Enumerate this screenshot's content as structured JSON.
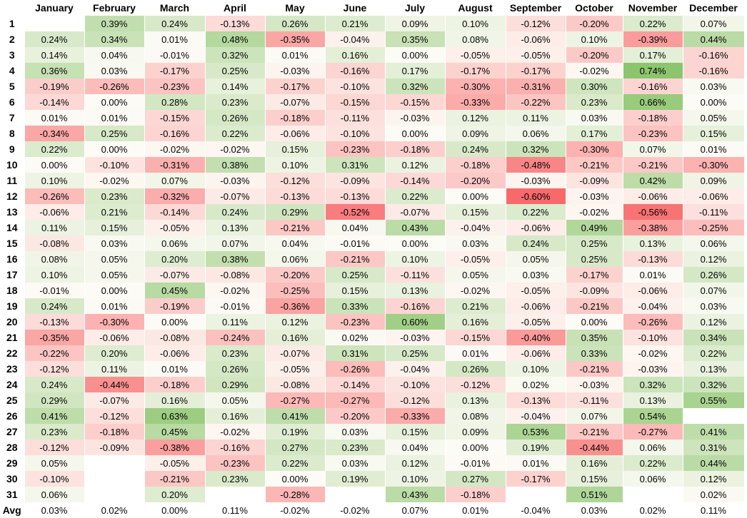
{
  "months": [
    "January",
    "February",
    "March",
    "April",
    "May",
    "June",
    "July",
    "August",
    "September",
    "October",
    "November",
    "December"
  ],
  "avg_label": "Avg",
  "rows": [
    {
      "day": "1",
      "values": [
        "",
        "0.39%",
        "0.24%",
        "-0.13%",
        "0.26%",
        "0.21%",
        "0.09%",
        "0.10%",
        "-0.12%",
        "-0.20%",
        "0.22%",
        "0.07%"
      ]
    },
    {
      "day": "2",
      "values": [
        "0.24%",
        "0.34%",
        "0.01%",
        "0.48%",
        "-0.35%",
        "-0.04%",
        "0.35%",
        "0.08%",
        "-0.06%",
        "0.10%",
        "-0.39%",
        "0.44%"
      ]
    },
    {
      "day": "3",
      "values": [
        "0.14%",
        "0.04%",
        "-0.01%",
        "0.32%",
        "0.01%",
        "0.16%",
        "0.00%",
        "-0.05%",
        "-0.05%",
        "-0.20%",
        "0.17%",
        "-0.16%"
      ]
    },
    {
      "day": "4",
      "values": [
        "0.36%",
        "0.03%",
        "-0.17%",
        "0.25%",
        "-0.03%",
        "-0.16%",
        "0.17%",
        "-0.17%",
        "-0.17%",
        "-0.02%",
        "0.74%",
        "-0.16%"
      ]
    },
    {
      "day": "5",
      "values": [
        "-0.19%",
        "-0.26%",
        "-0.23%",
        "0.14%",
        "-0.17%",
        "-0.10%",
        "0.32%",
        "-0.30%",
        "-0.31%",
        "0.30%",
        "-0.16%",
        "0.03%"
      ]
    },
    {
      "day": "6",
      "values": [
        "-0.14%",
        "0.00%",
        "0.28%",
        "0.23%",
        "-0.07%",
        "-0.15%",
        "-0.15%",
        "-0.33%",
        "-0.22%",
        "0.23%",
        "0.66%",
        "0.00%"
      ]
    },
    {
      "day": "7",
      "values": [
        "0.01%",
        "0.01%",
        "-0.15%",
        "0.26%",
        "-0.18%",
        "-0.11%",
        "-0.03%",
        "0.12%",
        "0.11%",
        "0.03%",
        "-0.18%",
        "0.05%"
      ]
    },
    {
      "day": "8",
      "values": [
        "-0.34%",
        "0.25%",
        "-0.16%",
        "0.22%",
        "-0.06%",
        "-0.10%",
        "0.00%",
        "0.09%",
        "0.06%",
        "0.17%",
        "-0.23%",
        "0.15%"
      ]
    },
    {
      "day": "9",
      "values": [
        "0.22%",
        "0.00%",
        "-0.02%",
        "-0.02%",
        "0.15%",
        "-0.23%",
        "-0.18%",
        "0.24%",
        "0.32%",
        "-0.30%",
        "0.07%",
        "0.01%"
      ]
    },
    {
      "day": "10",
      "values": [
        "0.00%",
        "-0.10%",
        "-0.31%",
        "0.38%",
        "0.10%",
        "0.31%",
        "0.12%",
        "-0.18%",
        "-0.48%",
        "-0.21%",
        "-0.21%",
        "-0.30%"
      ]
    },
    {
      "day": "11",
      "values": [
        "0.10%",
        "-0.02%",
        "0.07%",
        "-0.03%",
        "-0.12%",
        "-0.09%",
        "-0.14%",
        "-0.20%",
        "-0.03%",
        "-0.09%",
        "0.42%",
        "0.09%"
      ]
    },
    {
      "day": "12",
      "values": [
        "-0.26%",
        "0.23%",
        "-0.32%",
        "-0.07%",
        "-0.13%",
        "-0.13%",
        "0.22%",
        "0.00%",
        "-0.60%",
        "-0.03%",
        "-0.06%",
        "-0.06%"
      ]
    },
    {
      "day": "13",
      "values": [
        "-0.06%",
        "0.21%",
        "-0.14%",
        "0.24%",
        "0.29%",
        "-0.52%",
        "-0.07%",
        "0.15%",
        "0.22%",
        "-0.02%",
        "-0.56%",
        "-0.11%"
      ]
    },
    {
      "day": "14",
      "values": [
        "0.11%",
        "0.15%",
        "-0.05%",
        "0.13%",
        "-0.21%",
        "0.04%",
        "0.43%",
        "-0.04%",
        "-0.06%",
        "0.49%",
        "-0.38%",
        "-0.25%"
      ]
    },
    {
      "day": "15",
      "values": [
        "-0.08%",
        "0.03%",
        "0.06%",
        "0.07%",
        "0.04%",
        "-0.01%",
        "0.00%",
        "0.03%",
        "0.24%",
        "0.25%",
        "0.13%",
        "0.06%"
      ]
    },
    {
      "day": "16",
      "values": [
        "0.08%",
        "0.05%",
        "0.20%",
        "0.38%",
        "0.06%",
        "-0.21%",
        "0.10%",
        "-0.05%",
        "0.05%",
        "0.25%",
        "-0.13%",
        "0.12%"
      ]
    },
    {
      "day": "17",
      "values": [
        "0.10%",
        "0.05%",
        "-0.07%",
        "-0.08%",
        "-0.20%",
        "0.25%",
        "-0.11%",
        "0.05%",
        "0.03%",
        "-0.17%",
        "0.01%",
        "0.26%"
      ]
    },
    {
      "day": "18",
      "values": [
        "-0.01%",
        "0.00%",
        "0.45%",
        "-0.02%",
        "-0.25%",
        "0.15%",
        "0.13%",
        "-0.02%",
        "-0.05%",
        "-0.09%",
        "-0.06%",
        "0.07%"
      ]
    },
    {
      "day": "19",
      "values": [
        "0.24%",
        "0.01%",
        "-0.19%",
        "-0.01%",
        "-0.36%",
        "0.33%",
        "-0.16%",
        "0.21%",
        "-0.06%",
        "-0.21%",
        "-0.04%",
        "0.03%"
      ]
    },
    {
      "day": "20",
      "values": [
        "-0.13%",
        "-0.30%",
        "0.00%",
        "0.11%",
        "0.12%",
        "-0.23%",
        "0.60%",
        "0.16%",
        "-0.05%",
        "0.00%",
        "-0.26%",
        "0.12%"
      ]
    },
    {
      "day": "21",
      "values": [
        "-0.35%",
        "-0.06%",
        "-0.08%",
        "-0.24%",
        "0.16%",
        "0.02%",
        "-0.03%",
        "-0.15%",
        "-0.40%",
        "0.35%",
        "-0.10%",
        "0.34%"
      ]
    },
    {
      "day": "22",
      "values": [
        "-0.22%",
        "0.20%",
        "-0.06%",
        "0.23%",
        "-0.07%",
        "0.31%",
        "0.25%",
        "0.01%",
        "-0.06%",
        "0.33%",
        "-0.02%",
        "0.22%"
      ]
    },
    {
      "day": "23",
      "values": [
        "-0.12%",
        "0.11%",
        "0.01%",
        "0.26%",
        "-0.05%",
        "-0.26%",
        "-0.04%",
        "0.26%",
        "0.10%",
        "-0.21%",
        "-0.03%",
        "0.13%"
      ]
    },
    {
      "day": "24",
      "values": [
        "0.24%",
        "-0.44%",
        "-0.18%",
        "0.29%",
        "-0.08%",
        "-0.14%",
        "-0.10%",
        "-0.12%",
        "0.02%",
        "-0.03%",
        "0.32%",
        "0.32%"
      ]
    },
    {
      "day": "25",
      "values": [
        "0.29%",
        "-0.07%",
        "0.16%",
        "0.05%",
        "-0.27%",
        "-0.27%",
        "-0.12%",
        "0.13%",
        "-0.13%",
        "-0.11%",
        "0.13%",
        "0.55%"
      ]
    },
    {
      "day": "26",
      "values": [
        "0.41%",
        "-0.12%",
        "0.63%",
        "0.16%",
        "0.41%",
        "-0.20%",
        "-0.33%",
        "0.08%",
        "-0.04%",
        "0.07%",
        "0.54%",
        ""
      ]
    },
    {
      "day": "27",
      "values": [
        "0.23%",
        "-0.18%",
        "0.45%",
        "-0.02%",
        "0.19%",
        "0.03%",
        "0.15%",
        "0.09%",
        "0.53%",
        "-0.21%",
        "-0.27%",
        "0.41%"
      ]
    },
    {
      "day": "28",
      "values": [
        "-0.12%",
        "-0.09%",
        "-0.38%",
        "-0.16%",
        "0.27%",
        "0.23%",
        "0.04%",
        "0.00%",
        "0.19%",
        "-0.44%",
        "0.06%",
        "0.31%"
      ]
    },
    {
      "day": "29",
      "values": [
        "0.05%",
        "",
        "-0.05%",
        "-0.23%",
        "0.22%",
        "0.03%",
        "0.12%",
        "-0.01%",
        "0.01%",
        "0.16%",
        "0.22%",
        "0.44%"
      ]
    },
    {
      "day": "30",
      "values": [
        "-0.10%",
        "",
        "-0.21%",
        "0.23%",
        "0.00%",
        "0.19%",
        "0.10%",
        "0.27%",
        "-0.17%",
        "0.15%",
        "0.06%",
        "0.12%"
      ]
    },
    {
      "day": "31",
      "values": [
        "0.06%",
        "",
        "0.20%",
        "",
        "-0.28%",
        "",
        "0.43%",
        "-0.18%",
        "",
        "0.51%",
        "",
        "0.02%"
      ]
    }
  ],
  "avg": [
    "0.03%",
    "0.02%",
    "0.00%",
    "0.11%",
    "-0.02%",
    "-0.02%",
    "0.07%",
    "0.01%",
    "-0.04%",
    "0.03%",
    "0.02%",
    "0.11%"
  ],
  "colors": {
    "pos_max": "#8cc56d",
    "neg_max": "#f8696b",
    "neutral": "#fdfbf6",
    "empty": "#ffffff"
  }
}
